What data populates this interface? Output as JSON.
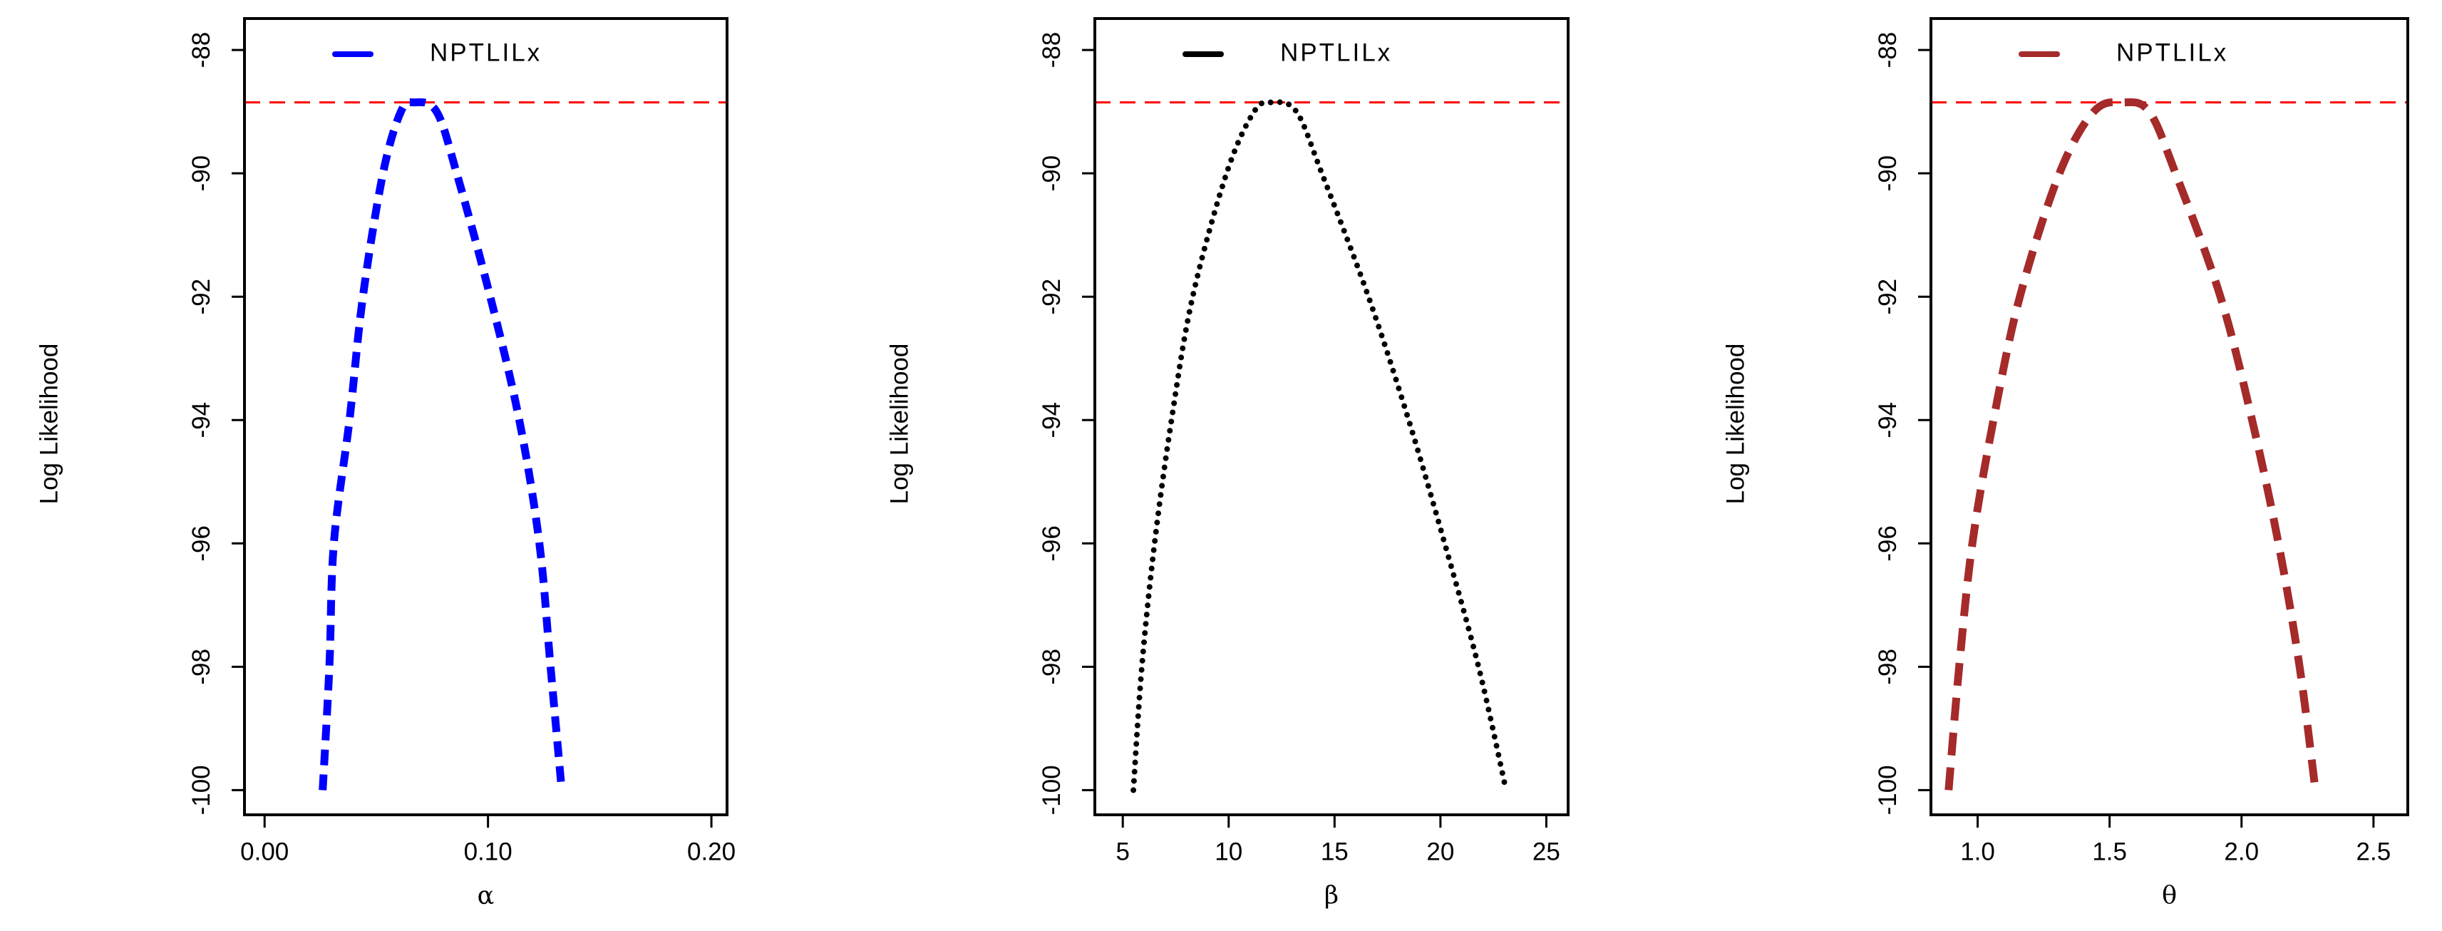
{
  "chart_data": [
    {
      "type": "line",
      "x_label": "α",
      "y_label": "Log Likelihood",
      "legend": "top",
      "xlim": [
        -0.009,
        0.207
      ],
      "ylim": [
        -100.4,
        -87.49
      ],
      "xticks": [
        {
          "value": 0,
          "label": "0.00"
        },
        {
          "value": 0.1,
          "label": "0.10"
        },
        {
          "value": 0.2,
          "label": "0.20"
        }
      ],
      "yticks": [
        -100,
        -98,
        -96,
        -94,
        -92,
        -90,
        -88
      ],
      "reference_line": {
        "value": -88.85,
        "color": "#ff0000"
      },
      "series": [
        {
          "name": "NPTLILx",
          "color": "#0000ff",
          "dash": "dashed",
          "x": [
            0.026,
            0.029,
            0.031,
            0.038,
            0.044,
            0.053,
            0.061,
            0.067,
            0.077,
            0.086,
            0.101,
            0.114,
            0.123,
            0.128,
            0.133
          ],
          "values": [
            -100,
            -98,
            -96,
            -94,
            -92,
            -90,
            -89,
            -88.85,
            -89,
            -90,
            -92,
            -94,
            -96,
            -98,
            -100
          ]
        }
      ]
    },
    {
      "type": "line",
      "x_label": "β",
      "y_label": "Log Likelihood",
      "legend": "top",
      "xlim": [
        3.68,
        26.03
      ],
      "ylim": [
        -100.4,
        -87.49
      ],
      "xticks": [
        5,
        10,
        15,
        20,
        25
      ],
      "yticks": [
        -100,
        -98,
        -96,
        -94,
        -92,
        -90,
        -88
      ],
      "reference_line": {
        "value": -88.85,
        "color": "#ff0000"
      },
      "series": [
        {
          "name": "NPTLILx",
          "color": "#000000",
          "dash": "dotted",
          "x": [
            5.5,
            5.9,
            6.5,
            7.3,
            8.3,
            9.9,
            11.2,
            12.06,
            13.2,
            14.4,
            16.6,
            18.5,
            20.2,
            21.8,
            23.1
          ],
          "values": [
            -100,
            -98,
            -96,
            -94,
            -92,
            -90,
            -89,
            -88.85,
            -89,
            -90,
            -92,
            -94,
            -96,
            -98,
            -100
          ]
        }
      ]
    },
    {
      "type": "line",
      "x_label": "θ",
      "y_label": "Log Likelihood",
      "legend": "top",
      "xlim": [
        0.823,
        2.63
      ],
      "ylim": [
        -100.4,
        -87.49
      ],
      "xticks": [
        {
          "value": 1,
          "label": "1.0"
        },
        {
          "value": 1.5,
          "label": "1.5"
        },
        {
          "value": 2,
          "label": "2.0"
        },
        {
          "value": 2.5,
          "label": "2.5"
        }
      ],
      "yticks": [
        -100,
        -98,
        -96,
        -94,
        -92,
        -90,
        -88
      ],
      "reference_line": {
        "value": -88.85,
        "color": "#ff0000"
      },
      "series": [
        {
          "name": "NPTLILx",
          "color": "#a52a2a",
          "dash": "longdash",
          "x": [
            0.89,
            0.93,
            0.98,
            1.06,
            1.16,
            1.31,
            1.44,
            1.55,
            1.65,
            1.75,
            1.92,
            2.04,
            2.14,
            2.22,
            2.28
          ],
          "values": [
            -100,
            -98,
            -96,
            -94,
            -92,
            -90,
            -89,
            -88.85,
            -89,
            -90,
            -92,
            -94,
            -96,
            -98,
            -100
          ]
        }
      ]
    }
  ]
}
